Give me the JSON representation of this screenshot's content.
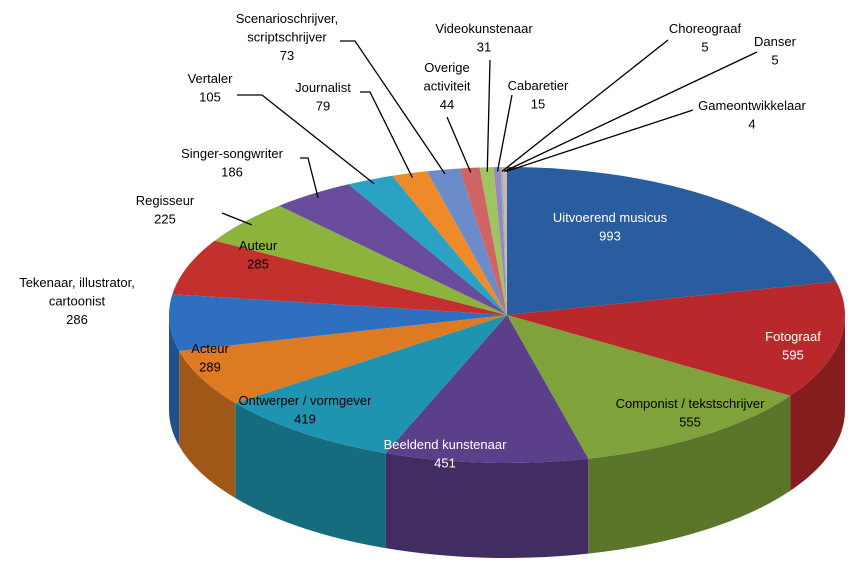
{
  "chart_data": {
    "type": "pie",
    "categories": [
      "Uitvoerend musicus",
      "Fotograaf",
      "Componist / tekstschrijver",
      "Beeldend kunstenaar",
      "Ontwerper / vormgever",
      "Acteur",
      "Tekenaar, illustrator,\ncartoonist",
      "Auteur",
      "Regisseur",
      "Singer-songwriter",
      "Vertaler",
      "Journalist",
      "Scenarioschrijver,\nscriptschrijver",
      "Overige\nactiviteit",
      "Videokunstenaar",
      "Cabaretier",
      "Choreograaf",
      "Danser",
      "Gameontwikkelaar"
    ],
    "values": [
      993,
      595,
      555,
      451,
      419,
      289,
      286,
      285,
      225,
      186,
      105,
      79,
      73,
      44,
      31,
      15,
      5,
      5,
      4
    ],
    "colors": [
      "#2A5DA0",
      "#B9282A",
      "#7FA33A",
      "#5C3F8A",
      "#1F94B0",
      "#DE7A22",
      "#2F6FC0",
      "#C4302E",
      "#8CB43C",
      "#6A4C9C",
      "#2AA2C4",
      "#EE8A2A",
      "#6C8BCB",
      "#D06464",
      "#9FC563",
      "#9A87BE",
      "#6FC0D8",
      "#F5A870",
      "#A9BCE0"
    ]
  }
}
